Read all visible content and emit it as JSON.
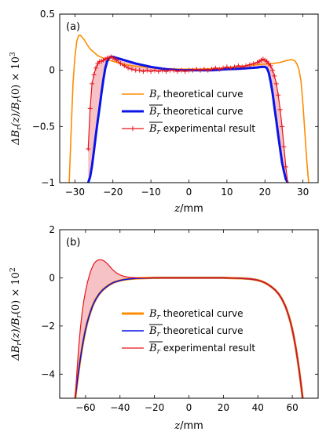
{
  "colors": {
    "orange": "#ff8c00",
    "blue": "#0a14e6",
    "red": "#e8141e",
    "fill": "#f4a8ae"
  },
  "chart_data": [
    {
      "type": "line",
      "panel_label": "(a)",
      "xlabel": "z/mm",
      "ylabel": "ΔB_r(z)/B_r(0) × 10^3",
      "ylabel_main": "ΔB",
      "ylabel_sub1": "r",
      "ylabel_mid": "(z)/B",
      "ylabel_sub2": "r",
      "ylabel_tail": "(0)  × 10",
      "ylabel_exp": "3",
      "xlim": [
        -34,
        34
      ],
      "ylim": [
        -1,
        0.5
      ],
      "xticks": [
        -30,
        -20,
        -10,
        0,
        10,
        20,
        30
      ],
      "xtick_labels": [
        "−30",
        "−20",
        "−10",
        "0",
        "10",
        "20",
        "30"
      ],
      "yticks": [
        -1,
        -0.5,
        0,
        0.5
      ],
      "ytick_labels": [
        "−1",
        "−0.5",
        "0",
        "0.5"
      ],
      "legend_position": "center",
      "fill_between": [
        "Br_bar theoretical curve",
        "Br_bar experimental result"
      ],
      "series": [
        {
          "name": "B_r theoretical curve",
          "sym": "B",
          "sub": "r",
          "overline": false,
          "desc": " theoretical curve",
          "color": "#ff8c00",
          "width": 1.6,
          "marker": false,
          "x": [
            -31.5,
            -31,
            -30.5,
            -30,
            -29.5,
            -29,
            -28.5,
            -28,
            -27.5,
            -27,
            -26,
            -25,
            -24,
            -22,
            -20,
            -18,
            -15,
            -12,
            -9,
            -6,
            -3,
            0,
            3,
            6,
            9,
            12,
            15,
            18,
            20,
            22,
            24,
            25,
            26,
            27,
            27.5,
            28,
            28.5,
            29,
            29.5,
            30,
            30.5,
            31,
            31.5
          ],
          "y": [
            -1.0,
            -0.55,
            -0.12,
            0.12,
            0.26,
            0.31,
            0.31,
            0.29,
            0.27,
            0.24,
            0.19,
            0.16,
            0.13,
            0.1,
            0.08,
            0.06,
            0.04,
            0.03,
            0.02,
            0.015,
            0.01,
            0.01,
            0.01,
            0.015,
            0.02,
            0.03,
            0.04,
            0.05,
            0.055,
            0.06,
            0.07,
            0.08,
            0.09,
            0.095,
            0.09,
            0.08,
            0.05,
            0.0,
            -0.1,
            -0.3,
            -0.55,
            -0.8,
            -1.0
          ]
        },
        {
          "name": "Br_bar theoretical curve",
          "sym": "B",
          "sub": "r",
          "overline": true,
          "desc": " theoretical curve",
          "color": "#0a14e6",
          "width": 3,
          "marker": false,
          "x": [
            -26.5,
            -26,
            -25.5,
            -25,
            -24.5,
            -24,
            -23.5,
            -23,
            -22.5,
            -22,
            -21.5,
            -21,
            -20.5,
            -20,
            -19,
            -18,
            -16,
            -14,
            -12,
            -10,
            -8,
            -6,
            -4,
            -2,
            0,
            2,
            4,
            6,
            8,
            10,
            12,
            14,
            16,
            17,
            18,
            19,
            20,
            20.5,
            21,
            21.5,
            22,
            22.5,
            23,
            23.5,
            24,
            24.5,
            25,
            25.5,
            26
          ],
          "y": [
            -1.0,
            -0.95,
            -0.85,
            -0.72,
            -0.58,
            -0.45,
            -0.33,
            -0.2,
            -0.08,
            0.02,
            0.08,
            0.11,
            0.12,
            0.12,
            0.11,
            0.1,
            0.08,
            0.06,
            0.045,
            0.03,
            0.02,
            0.01,
            0.005,
            0.0,
            0.0,
            0.0,
            0.0,
            0.0,
            0.005,
            0.01,
            0.012,
            0.015,
            0.02,
            0.022,
            0.025,
            0.03,
            0.03,
            0.02,
            -0.02,
            -0.1,
            -0.2,
            -0.33,
            -0.45,
            -0.58,
            -0.7,
            -0.82,
            -0.9,
            -0.97,
            -1.0
          ]
        },
        {
          "name": "Br_bar experimental result",
          "sym": "B",
          "sub": "r",
          "overline": true,
          "desc": " experimental result",
          "color": "#e8141e",
          "width": 1.2,
          "marker": true,
          "x": [
            -26.5,
            -26,
            -25.5,
            -25,
            -24.5,
            -24,
            -23.5,
            -23,
            -22.5,
            -22,
            -21.5,
            -21,
            -20.5,
            -20,
            -19.5,
            -19,
            -18,
            -17,
            -16,
            -15,
            -14,
            -13,
            -12,
            -11,
            -10,
            -9,
            -8,
            -7,
            -6,
            -5,
            -4,
            -3,
            -2,
            -1,
            0,
            1,
            2,
            3,
            4,
            5,
            6,
            7,
            8,
            9,
            10,
            11,
            12,
            13,
            14,
            15,
            16,
            17,
            18,
            18.5,
            19,
            19.5,
            20,
            20.5,
            21,
            21.5,
            22,
            22.5,
            23,
            23.5,
            24,
            24.5,
            25,
            25.5,
            26
          ],
          "y": [
            -0.7,
            -0.34,
            -0.12,
            -0.04,
            0.02,
            0.06,
            0.08,
            0.08,
            0.09,
            0.1,
            0.11,
            0.11,
            0.12,
            0.11,
            0.1,
            0.09,
            0.06,
            0.04,
            0.02,
            0.01,
            0.0,
            0.0,
            -0.01,
            0.0,
            -0.01,
            0.0,
            -0.01,
            0.0,
            -0.01,
            0.0,
            0.0,
            -0.01,
            0.0,
            -0.01,
            0.0,
            0.0,
            0.01,
            0.0,
            0.01,
            0.0,
            0.01,
            0.02,
            0.01,
            0.02,
            0.03,
            0.02,
            0.03,
            0.04,
            0.03,
            0.04,
            0.05,
            0.06,
            0.07,
            0.08,
            0.09,
            0.1,
            0.09,
            0.08,
            0.06,
            0.04,
            0.0,
            -0.05,
            -0.12,
            -0.22,
            -0.35,
            -0.5,
            -0.68,
            -0.86,
            -1.0
          ]
        }
      ]
    },
    {
      "type": "line",
      "panel_label": "(b)",
      "xlabel": "z/mm",
      "ylabel": "ΔB_r(z)/B_r(0) × 10^2",
      "ylabel_main": "ΔB",
      "ylabel_sub1": "r",
      "ylabel_mid": "(z)/B",
      "ylabel_sub2": "r",
      "ylabel_tail": "(0)  × 10",
      "ylabel_exp": "2",
      "xlim": [
        -75,
        75
      ],
      "ylim": [
        -5,
        2
      ],
      "xticks": [
        -60,
        -40,
        -20,
        0,
        20,
        40,
        60
      ],
      "xtick_labels": [
        "−60",
        "−40",
        "−20",
        "0",
        "20",
        "40",
        "60"
      ],
      "yticks": [
        -4,
        -2,
        0,
        2
      ],
      "ytick_labels": [
        "−4",
        "−2",
        "0",
        "2"
      ],
      "legend_position": "lower-center",
      "fill_between": [
        "Br_bar theoretical curve",
        "Br_bar experimental result"
      ],
      "series": [
        {
          "name": "B_r theoretical curve",
          "sym": "B",
          "sub": "r",
          "overline": false,
          "desc": " theoretical curve",
          "color": "#ff8c00",
          "width": 3,
          "marker": false,
          "x": [
            -66,
            -65,
            -64,
            -63,
            -62,
            -61,
            -60,
            -59,
            -58,
            -57,
            -56,
            -55,
            -54,
            -52,
            -50,
            -48,
            -46,
            -44,
            -42,
            -40,
            -38,
            -36,
            -34,
            -32,
            -30,
            -25,
            -20,
            -10,
            0,
            10,
            20,
            25,
            30,
            35,
            38,
            40,
            42,
            44,
            46,
            48,
            50,
            52,
            54,
            56,
            57,
            58,
            59,
            60,
            61,
            62,
            63,
            64,
            65,
            66
          ],
          "y": [
            -5.0,
            -4.4,
            -3.85,
            -3.35,
            -2.9,
            -2.5,
            -2.15,
            -1.85,
            -1.6,
            -1.38,
            -1.18,
            -1.02,
            -0.88,
            -0.66,
            -0.5,
            -0.38,
            -0.28,
            -0.2,
            -0.15,
            -0.11,
            -0.08,
            -0.06,
            -0.04,
            -0.03,
            -0.02,
            -0.01,
            0.0,
            0.0,
            0.0,
            0.0,
            0.0,
            -0.01,
            -0.02,
            -0.04,
            -0.07,
            -0.1,
            -0.14,
            -0.2,
            -0.28,
            -0.38,
            -0.5,
            -0.66,
            -0.88,
            -1.18,
            -1.38,
            -1.6,
            -1.85,
            -2.15,
            -2.5,
            -2.9,
            -3.35,
            -3.85,
            -4.4,
            -5.0
          ]
        },
        {
          "name": "Br_bar theoretical curve",
          "sym": "B",
          "sub": "r",
          "overline": true,
          "desc": " theoretical curve",
          "color": "#0a14e6",
          "width": 1.6,
          "marker": false,
          "x": [
            -66,
            -65,
            -64,
            -63,
            -62,
            -61,
            -60,
            -59,
            -58,
            -57,
            -56,
            -55,
            -54,
            -52,
            -50,
            -48,
            -46,
            -44,
            -42,
            -40,
            -38,
            -36,
            -34,
            -32,
            -30,
            -25,
            -20,
            -10,
            0,
            10,
            20,
            25,
            30,
            35,
            38,
            40,
            42,
            44,
            46,
            48,
            50,
            52,
            54,
            56,
            57,
            58,
            59,
            60,
            61,
            62,
            63,
            64,
            65,
            66
          ],
          "y": [
            -5.0,
            -4.4,
            -3.85,
            -3.35,
            -2.9,
            -2.5,
            -2.15,
            -1.85,
            -1.6,
            -1.38,
            -1.18,
            -1.02,
            -0.88,
            -0.66,
            -0.5,
            -0.38,
            -0.28,
            -0.2,
            -0.15,
            -0.11,
            -0.08,
            -0.06,
            -0.04,
            -0.03,
            -0.02,
            -0.01,
            0.0,
            0.0,
            0.0,
            0.0,
            0.0,
            -0.01,
            -0.02,
            -0.04,
            -0.07,
            -0.1,
            -0.14,
            -0.2,
            -0.28,
            -0.38,
            -0.5,
            -0.66,
            -0.88,
            -1.18,
            -1.38,
            -1.6,
            -1.85,
            -2.15,
            -2.5,
            -2.9,
            -3.35,
            -3.85,
            -4.4,
            -5.0
          ]
        },
        {
          "name": "Br_bar experimental result",
          "sym": "B",
          "sub": "r",
          "overline": true,
          "desc": " experimental result",
          "color": "#e8141e",
          "width": 1.2,
          "marker": false,
          "x": [
            -66,
            -65,
            -64,
            -63,
            -62,
            -61,
            -60,
            -59,
            -58,
            -57,
            -56,
            -55,
            -54,
            -53,
            -52,
            -51,
            -50,
            -49,
            -48,
            -47,
            -46,
            -45,
            -44,
            -42,
            -40,
            -38,
            -36,
            -34,
            -32,
            -30,
            -25,
            -20,
            -10,
            0,
            10,
            20,
            25,
            30,
            35,
            38,
            40,
            42,
            44,
            46,
            48,
            50,
            52,
            54,
            56,
            57,
            58,
            59,
            60,
            61,
            62,
            63,
            64,
            65,
            66
          ],
          "y": [
            -5.0,
            -3.9,
            -2.9,
            -2.1,
            -1.45,
            -0.95,
            -0.55,
            -0.22,
            0.05,
            0.28,
            0.46,
            0.6,
            0.68,
            0.73,
            0.75,
            0.75,
            0.73,
            0.69,
            0.63,
            0.56,
            0.48,
            0.4,
            0.32,
            0.2,
            0.12,
            0.07,
            0.04,
            0.02,
            0.01,
            0.0,
            0.0,
            0.0,
            0.0,
            0.0,
            0.0,
            0.0,
            -0.01,
            -0.02,
            -0.04,
            -0.07,
            -0.1,
            -0.14,
            -0.2,
            -0.28,
            -0.38,
            -0.5,
            -0.66,
            -0.88,
            -1.18,
            -1.38,
            -1.6,
            -1.85,
            -2.15,
            -2.5,
            -2.9,
            -3.35,
            -3.85,
            -4.4,
            -5.0
          ]
        }
      ]
    }
  ]
}
